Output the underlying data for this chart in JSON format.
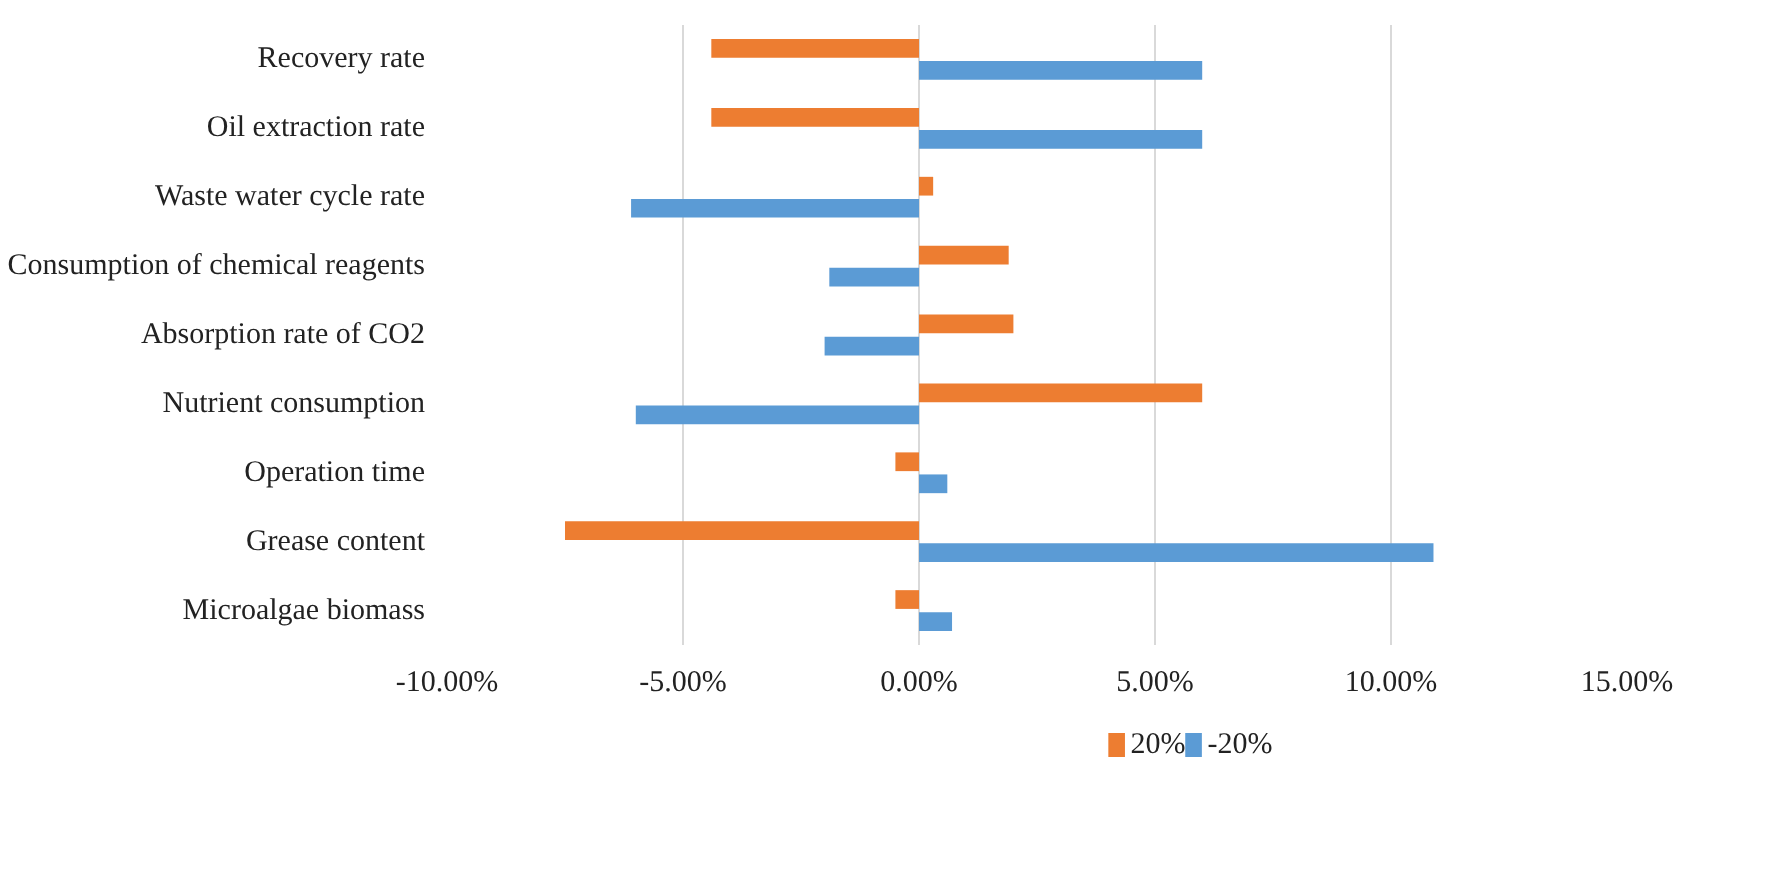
{
  "chart_data": {
    "type": "bar",
    "orientation": "horizontal",
    "categories": [
      "Recovery rate",
      "Oil extraction rate",
      "Waste water cycle rate",
      "Consumption of chemical reagents",
      "Absorption rate of CO2",
      "Nutrient consumption",
      "Operation time",
      "Grease content",
      "Microalgae biomass"
    ],
    "series": [
      {
        "name": "20%",
        "color": "#ed7d31",
        "values": [
          -4.4,
          -4.4,
          0.3,
          1.9,
          2.0,
          6.0,
          -0.5,
          -7.5,
          -0.5
        ]
      },
      {
        "name": "-20%",
        "color": "#5b9bd5",
        "values": [
          6.0,
          6.0,
          -6.1,
          -1.9,
          -2.0,
          -6.0,
          0.6,
          10.9,
          0.7
        ]
      }
    ],
    "xlim": [
      -10,
      15
    ],
    "xticks": [
      {
        "value": -10,
        "label": "-10.00%"
      },
      {
        "value": -5,
        "label": "-5.00%"
      },
      {
        "value": 0,
        "label": "0.00%"
      },
      {
        "value": 5,
        "label": "5.00%"
      },
      {
        "value": 10,
        "label": "10.00%"
      },
      {
        "value": 15,
        "label": "15.00%"
      }
    ],
    "grid": "x",
    "legend": "bottom"
  }
}
